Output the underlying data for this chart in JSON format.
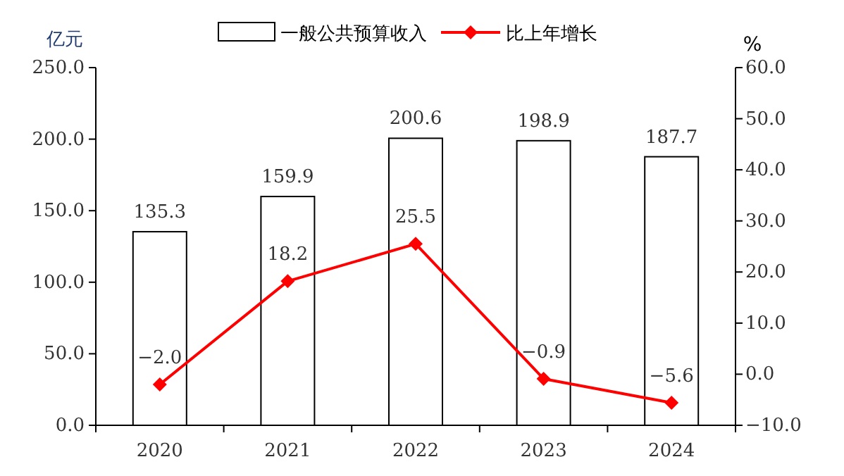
{
  "chart_data": {
    "type": "bar",
    "ylabel": "亿元",
    "y2label": "%",
    "categories": [
      "2020",
      "2021",
      "2022",
      "2023",
      "2024"
    ],
    "series": [
      {
        "name": "一般公共预算收入",
        "color": "#ffffff",
        "values": [
          135.3,
          159.9,
          200.6,
          198.9,
          187.7
        ],
        "value_labels": [
          "135.3",
          "159.9",
          "200.6",
          "198.9",
          "187.7"
        ]
      },
      {
        "name": "比上年增长",
        "type": "line",
        "axis": "y2",
        "color": "#ff0000",
        "marker": "diamond",
        "values": [
          -2.0,
          18.2,
          25.5,
          -0.9,
          -5.6
        ],
        "value_labels": [
          "−2.0",
          "18.2",
          "25.5",
          "−0.9",
          "−5.6"
        ]
      }
    ],
    "ylim": [
      0,
      250
    ],
    "yticks": [
      {
        "value": 0,
        "label": "0.0"
      },
      {
        "value": 50,
        "label": "50.0"
      },
      {
        "value": 100,
        "label": "100.0"
      },
      {
        "value": 150,
        "label": "150.0"
      },
      {
        "value": 200,
        "label": "200.0"
      },
      {
        "value": 250,
        "label": "250.0"
      }
    ],
    "y2lim": [
      -10,
      60
    ],
    "y2ticks": [
      {
        "value": -10,
        "label": "−10.0"
      },
      {
        "value": 0,
        "label": "0.0"
      },
      {
        "value": 10,
        "label": "10.0"
      },
      {
        "value": 20,
        "label": "20.0"
      },
      {
        "value": 30,
        "label": "30.0"
      },
      {
        "value": 40,
        "label": "40.0"
      },
      {
        "value": 50,
        "label": "50.0"
      },
      {
        "value": 60,
        "label": "60.0"
      }
    ],
    "legend": "top",
    "grid": false
  }
}
